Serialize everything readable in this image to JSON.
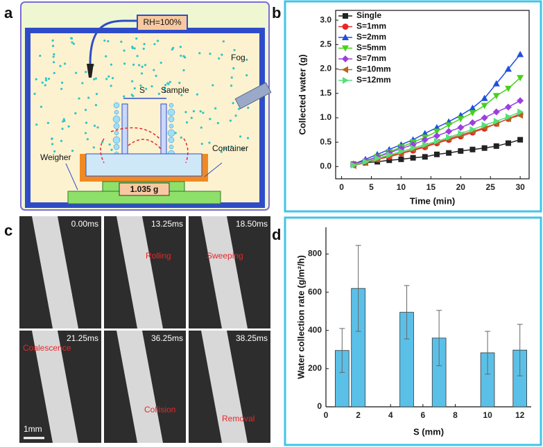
{
  "panels": {
    "a": {
      "label": "a",
      "rh": "RH=100%",
      "fog": "Fog",
      "s": "S",
      "sample": "Sample",
      "weigher": "Weigher",
      "container": "Container",
      "reading": "1.035 g"
    },
    "b": {
      "label": "b"
    },
    "c": {
      "label": "c",
      "frames": [
        "0.00ms",
        "13.25ms",
        "18.50ms",
        "21.25ms",
        "36.25ms",
        "38.25ms"
      ],
      "annotations": [
        "Rolling",
        "Sweeping",
        "Coalescence",
        "Collision",
        "Removal"
      ],
      "scale_bar": "1mm"
    },
    "d": {
      "label": "d"
    }
  },
  "chart_data": [
    {
      "type": "line",
      "xlabel": "Time (min)",
      "ylabel": "Collected water (g)",
      "x": [
        2,
        4,
        6,
        8,
        10,
        12,
        14,
        16,
        18,
        20,
        22,
        24,
        26,
        28,
        30
      ],
      "xlim": [
        -1,
        31.5
      ],
      "xticks": [
        0,
        5,
        10,
        15,
        20,
        25,
        30
      ],
      "ylim": [
        -0.25,
        3.2
      ],
      "yticks": [
        {
          "value": 0,
          "label": "0.0"
        },
        0.5,
        {
          "value": 1,
          "label": "1.0"
        },
        1.5,
        {
          "value": 2,
          "label": "2.0"
        },
        2.5,
        {
          "value": 3,
          "label": "3.0"
        }
      ],
      "legend": "upper left",
      "series": [
        {
          "name": "Single",
          "color": "#222222",
          "marker": "square",
          "values": [
            0.05,
            0.08,
            0.1,
            0.13,
            0.15,
            0.18,
            0.2,
            0.25,
            0.28,
            0.32,
            0.35,
            0.38,
            0.42,
            0.48,
            0.55
          ]
        },
        {
          "name": "S=1mm",
          "color": "#e8262a",
          "marker": "circle",
          "values": [
            0.05,
            0.1,
            0.15,
            0.2,
            0.27,
            0.33,
            0.4,
            0.48,
            0.55,
            0.62,
            0.7,
            0.78,
            0.88,
            0.98,
            1.08
          ]
        },
        {
          "name": "S=2mm",
          "color": "#1f4fe0",
          "marker": "triangle-up",
          "values": [
            0.05,
            0.15,
            0.25,
            0.35,
            0.45,
            0.55,
            0.68,
            0.8,
            0.92,
            1.05,
            1.2,
            1.4,
            1.7,
            2.0,
            2.3
          ]
        },
        {
          "name": "S=5mm",
          "color": "#46d11c",
          "marker": "triangle-down",
          "values": [
            0.03,
            0.1,
            0.2,
            0.3,
            0.4,
            0.5,
            0.6,
            0.72,
            0.85,
            0.98,
            1.1,
            1.25,
            1.45,
            1.6,
            1.82
          ]
        },
        {
          "name": "S=7mm",
          "color": "#9b3fe0",
          "marker": "diamond",
          "values": [
            0.05,
            0.12,
            0.2,
            0.28,
            0.37,
            0.45,
            0.55,
            0.63,
            0.72,
            0.8,
            0.9,
            1.0,
            1.12,
            1.22,
            1.35
          ]
        },
        {
          "name": "S=10mm",
          "color": "#b5651d",
          "marker": "triangle-left",
          "values": [
            0.02,
            0.08,
            0.15,
            0.22,
            0.28,
            0.35,
            0.42,
            0.5,
            0.57,
            0.65,
            0.72,
            0.8,
            0.88,
            0.98,
            1.05
          ]
        },
        {
          "name": "S=12mm",
          "color": "#55e07a",
          "marker": "triangle-right",
          "values": [
            0.03,
            0.1,
            0.17,
            0.24,
            0.31,
            0.38,
            0.45,
            0.52,
            0.6,
            0.68,
            0.76,
            0.85,
            0.93,
            1.02,
            1.12
          ]
        }
      ]
    },
    {
      "type": "bar",
      "xlabel": "S (mm)",
      "ylabel": "Water collection rate (g/m²/h)",
      "x": [
        1,
        2,
        5,
        7,
        10,
        12
      ],
      "values": [
        295,
        620,
        495,
        360,
        283,
        297
      ],
      "errors": [
        115,
        225,
        140,
        145,
        112,
        135
      ],
      "color": "#5bc0e8",
      "xlim": [
        0,
        12.7
      ],
      "xticks": [
        0,
        2,
        4,
        6,
        8,
        10,
        12
      ],
      "ylim": [
        0,
        940
      ],
      "yticks": [
        0,
        200,
        400,
        600,
        800
      ]
    }
  ]
}
